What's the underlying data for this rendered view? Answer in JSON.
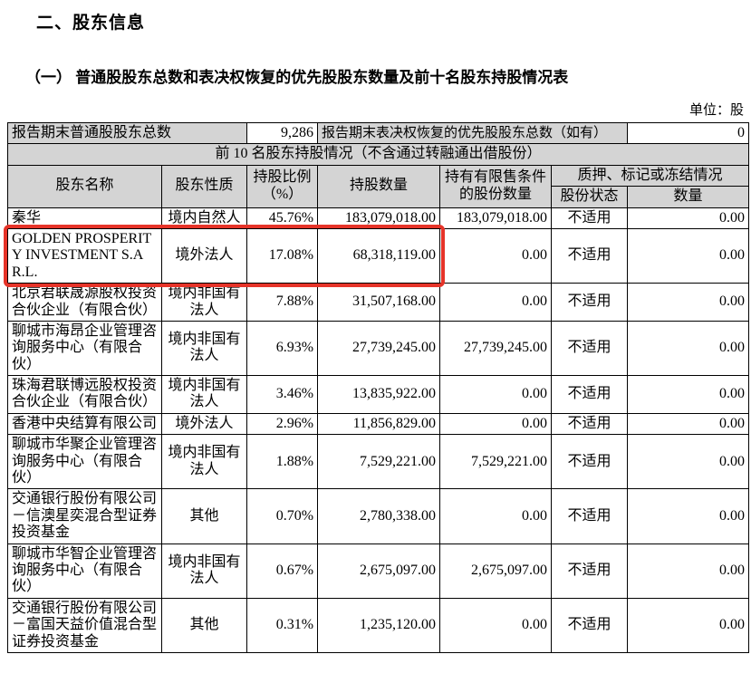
{
  "page": {
    "section_title": "二、股东信息",
    "subsection_title": "（一） 普通股股东总数和表决权恢复的优先股股东数量及前十名股东持股情况表",
    "unit_label": "单位：股"
  },
  "summary": {
    "common_holders_label": "报告期末普通股股东总数",
    "common_holders_value": "9,286",
    "preferred_holders_label": "报告期末表决权恢复的优先股股东总数（如有）",
    "preferred_holders_value": "0"
  },
  "table": {
    "section_header": "前 10 名股东持股情况（不含通过转融通出借股份）",
    "columns": {
      "name": "股东名称",
      "nature": "股东性质",
      "ratio": "持股比例（%）",
      "shares": "持股数量",
      "restricted": "持有有限售条件的股份数量",
      "pledge_group": "质押、标记或冻结情况",
      "pledge_status": "股份状态",
      "pledge_qty": "数量"
    },
    "rows": [
      {
        "name": "秦华",
        "nature": "境内自然人",
        "ratio": "45.76%",
        "shares": "183,079,018.00",
        "restricted": "183,079,018.00",
        "status": "不适用",
        "qty": "0.00",
        "highlighted": false
      },
      {
        "name": "GOLDEN PROSPERITY INVESTMENT S.A R.L.",
        "nature": "境外法人",
        "ratio": "17.08%",
        "shares": "68,318,119.00",
        "restricted": "0.00",
        "status": "不适用",
        "qty": "0.00",
        "highlighted": true
      },
      {
        "name": "北京君联晟源股权投资合伙企业（有限合伙）",
        "nature": "境内非国有法人",
        "ratio": "7.88%",
        "shares": "31,507,168.00",
        "restricted": "0.00",
        "status": "不适用",
        "qty": "0.00",
        "highlighted": false
      },
      {
        "name": "聊城市海昂企业管理咨询服务中心（有限合伙）",
        "nature": "境内非国有法人",
        "ratio": "6.93%",
        "shares": "27,739,245.00",
        "restricted": "27,739,245.00",
        "status": "不适用",
        "qty": "0.00",
        "highlighted": false
      },
      {
        "name": "珠海君联博远股权投资合伙企业（有限合伙）",
        "nature": "境内非国有法人",
        "ratio": "3.46%",
        "shares": "13,835,922.00",
        "restricted": "0.00",
        "status": "不适用",
        "qty": "0.00",
        "highlighted": false
      },
      {
        "name": "香港中央结算有限公司",
        "nature": "境外法人",
        "ratio": "2.96%",
        "shares": "11,856,829.00",
        "restricted": "0.00",
        "status": "不适用",
        "qty": "0.00",
        "highlighted": false
      },
      {
        "name": "聊城市华聚企业管理咨询服务中心（有限合伙）",
        "nature": "境内非国有法人",
        "ratio": "1.88%",
        "shares": "7,529,221.00",
        "restricted": "7,529,221.00",
        "status": "不适用",
        "qty": "0.00",
        "highlighted": false
      },
      {
        "name": "交通银行股份有限公司－信澳星奕混合型证券投资基金",
        "nature": "其他",
        "ratio": "0.70%",
        "shares": "2,780,338.00",
        "restricted": "0.00",
        "status": "不适用",
        "qty": "0.00",
        "highlighted": false
      },
      {
        "name": "聊城市华智企业管理咨询服务中心（有限合伙）",
        "nature": "境内非国有法人",
        "ratio": "0.67%",
        "shares": "2,675,097.00",
        "restricted": "2,675,097.00",
        "status": "不适用",
        "qty": "0.00",
        "highlighted": false
      },
      {
        "name": "交通银行股份有限公司－富国天益价值混合型证券投资基金",
        "nature": "其他",
        "ratio": "0.31%",
        "shares": "1,235,120.00",
        "restricted": "0.00",
        "status": "不适用",
        "qty": "0.00",
        "highlighted": false
      }
    ]
  },
  "highlight": {
    "color": "#e63429"
  }
}
